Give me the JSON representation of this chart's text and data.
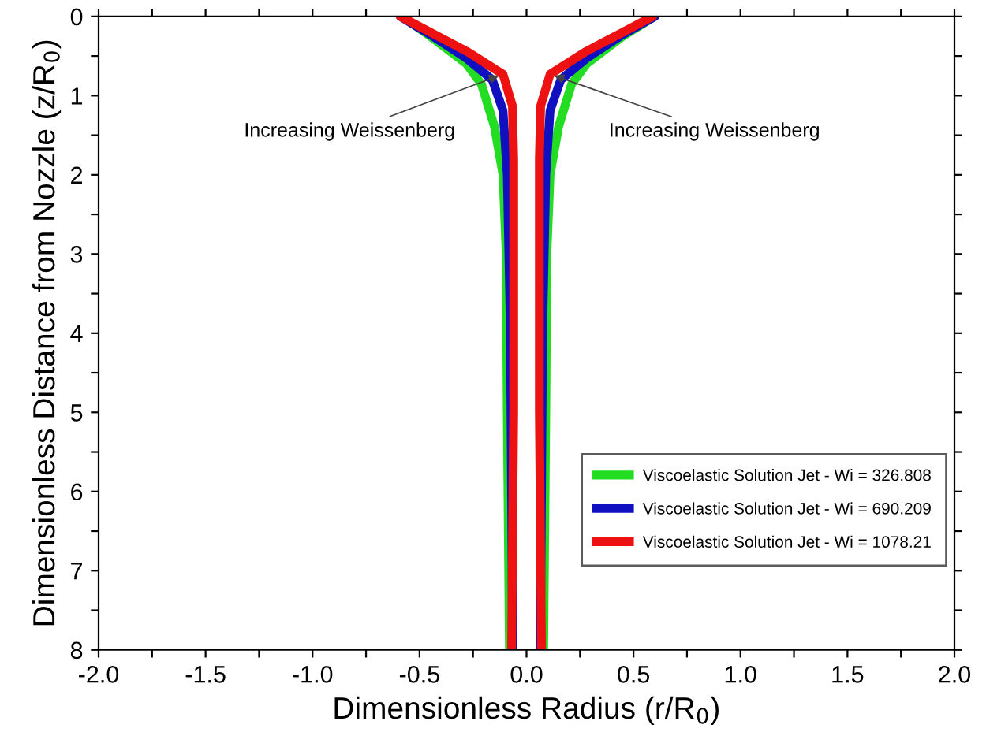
{
  "chart_data": {
    "type": "line",
    "xlabel": "Dimensionless Radius (r/R$_{0}$)",
    "ylabel": "Dimensionless Distance from Nozzle (z/R$_{0}$)",
    "series": [
      {
        "name": "Viscoelastic Solution Jet - Wi = 326.808",
        "color": "#22dd22",
        "x": [
          -0.58,
          -0.45,
          -0.28,
          -0.21,
          -0.15,
          -0.11,
          -0.095,
          -0.09,
          -0.085,
          -0.08,
          null,
          0.08,
          0.085,
          0.09,
          0.095,
          0.11,
          0.15,
          0.21,
          0.28,
          0.45,
          0.6
        ],
        "values": [
          0,
          0.25,
          0.6,
          0.86,
          1.39,
          2.0,
          3.0,
          5.0,
          6.5,
          8,
          null,
          8,
          6.5,
          5.0,
          3.0,
          2.0,
          1.39,
          0.86,
          0.6,
          0.25,
          0
        ]
      },
      {
        "name": "Viscoelastic Solution Jet - Wi = 690.209",
        "color": "#1010c0",
        "x": [
          -0.59,
          -0.45,
          -0.28,
          -0.16,
          -0.11,
          -0.09,
          -0.075,
          -0.07,
          -0.065,
          null,
          0.065,
          0.07,
          0.075,
          0.09,
          0.11,
          0.16,
          0.28,
          0.45,
          0.6
        ],
        "values": [
          0,
          0.23,
          0.53,
          0.8,
          1.19,
          2.0,
          4.0,
          6.0,
          8,
          null,
          8,
          6.0,
          4.0,
          2.0,
          1.19,
          0.8,
          0.53,
          0.23,
          0
        ]
      },
      {
        "name": "Viscoelastic Solution Jet - Wi = 1078.21",
        "color": "#ee1111",
        "x": [
          -0.59,
          -0.45,
          -0.28,
          -0.11,
          -0.066,
          -0.06,
          -0.06,
          -0.07,
          null,
          0.07,
          0.06,
          0.06,
          0.066,
          0.11,
          0.28,
          0.45,
          0.59
        ],
        "values": [
          0,
          0.2,
          0.44,
          0.73,
          1.13,
          1.8,
          5.0,
          8,
          null,
          8,
          5.0,
          1.8,
          1.13,
          0.73,
          0.44,
          0.2,
          0
        ]
      }
    ],
    "xlim": [
      -2.0,
      2.0
    ],
    "xticks": [
      {
        "value": -2.0,
        "label": "-2.0"
      },
      {
        "value": -1.75,
        "label": null
      },
      {
        "value": -1.5,
        "label": "-1.5"
      },
      {
        "value": -1.25,
        "label": null
      },
      {
        "value": -1.0,
        "label": "-1.0"
      },
      {
        "value": -0.75,
        "label": null
      },
      {
        "value": -0.5,
        "label": "-0.5"
      },
      {
        "value": -0.25,
        "label": null
      },
      {
        "value": 0.0,
        "label": "0.0"
      },
      {
        "value": 0.25,
        "label": null
      },
      {
        "value": 0.5,
        "label": "0.5"
      },
      {
        "value": 0.75,
        "label": null
      },
      {
        "value": 1.0,
        "label": "1.0"
      },
      {
        "value": 1.25,
        "label": null
      },
      {
        "value": 1.5,
        "label": "1.5"
      },
      {
        "value": 1.75,
        "label": null
      },
      {
        "value": 2.0,
        "label": "2.0"
      }
    ],
    "ylim": [
      8,
      0
    ],
    "yticks": [
      0,
      {
        "value": 0.5,
        "label": null
      },
      1,
      {
        "value": 1.5,
        "label": null
      },
      2,
      {
        "value": 2.5,
        "label": null
      },
      3,
      {
        "value": 3.5,
        "label": null
      },
      4,
      {
        "value": 4.5,
        "label": null
      },
      5,
      {
        "value": 5.5,
        "label": null
      },
      6,
      {
        "value": 6.5,
        "label": null
      },
      7,
      {
        "value": 7.5,
        "label": null
      },
      8
    ],
    "annotations": [
      {
        "text": "Increasing Weissenberg",
        "x": -0.11,
        "y": 0.73
      },
      {
        "text": "Increasing Weissenberg",
        "x": 0.11,
        "y": 0.73
      }
    ],
    "legend": "bottom right",
    "grid": false
  }
}
